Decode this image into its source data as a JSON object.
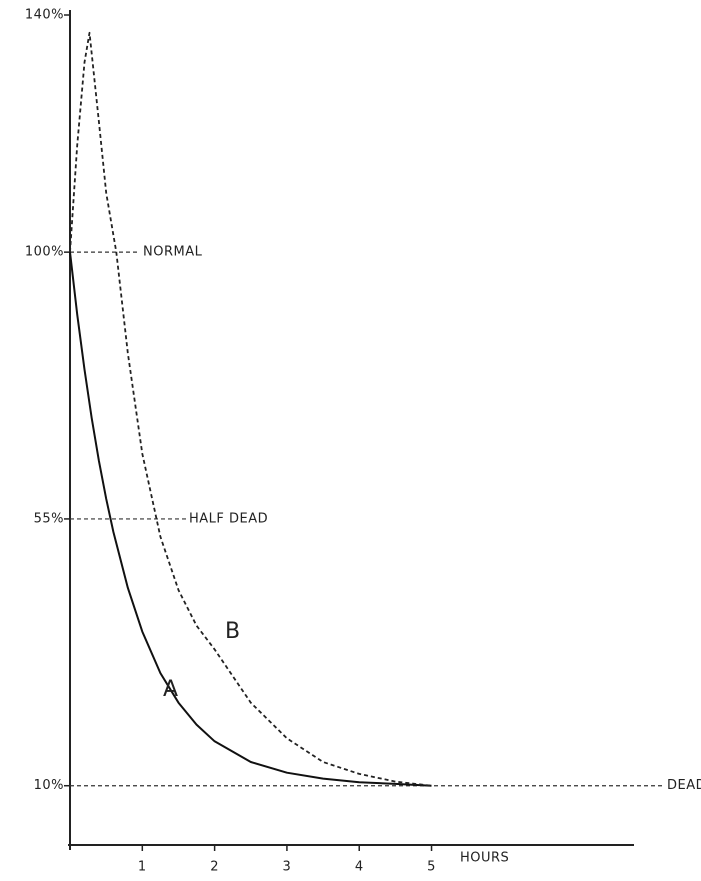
{
  "chart_data": {
    "type": "line",
    "xlabel": "HOURS",
    "xlim": [
      0,
      7.8
    ],
    "ylim": [
      0,
      140
    ],
    "xticks": [
      1,
      2,
      3,
      4,
      5
    ],
    "yticks": [
      {
        "value": 10,
        "label": "10%"
      },
      {
        "value": 55,
        "label": "55%"
      },
      {
        "value": 100,
        "label": "100%"
      },
      {
        "value": 140,
        "label": "140%"
      }
    ],
    "reference_lines": [
      {
        "value": 100,
        "label": "NORMAL"
      },
      {
        "value": 55,
        "label": "HALF DEAD"
      },
      {
        "value": 10,
        "label": "DEAD"
      }
    ],
    "series": [
      {
        "name": "A",
        "color": "#111111",
        "dashed": false,
        "x": [
          0,
          0.1,
          0.2,
          0.3,
          0.4,
          0.5,
          0.6,
          0.8,
          1,
          1.25,
          1.5,
          1.75,
          2,
          2.5,
          3,
          3.5,
          4,
          4.5,
          5
        ],
        "values": [
          100,
          89.5,
          80.2,
          72,
          64.8,
          58.4,
          52.8,
          43.4,
          36,
          29,
          24,
          20.3,
          17.5,
          14,
          12.2,
          11.2,
          10.6,
          10.3,
          10
        ]
      },
      {
        "name": "B",
        "color": "#222222",
        "dashed": true,
        "x": [
          0,
          0.1,
          0.2,
          0.27,
          0.4,
          0.5,
          0.64,
          0.8,
          1,
          1.25,
          1.5,
          1.75,
          2,
          2.5,
          3,
          3.5,
          4,
          4.5,
          5
        ],
        "values": [
          100,
          118,
          132,
          137,
          122,
          110,
          100,
          83,
          66,
          52,
          43,
          37,
          33,
          24,
          18,
          14,
          12,
          10.7,
          10
        ]
      }
    ]
  }
}
